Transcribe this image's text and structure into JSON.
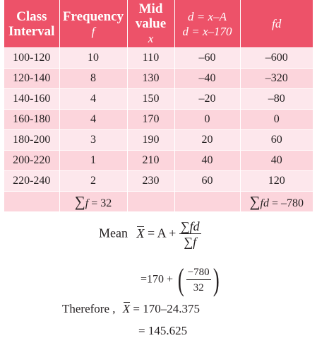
{
  "table": {
    "headers": [
      {
        "line1": "Class",
        "line2": "Interval",
        "line3": ""
      },
      {
        "line1": "Frequency",
        "line2": "f",
        "line3": ""
      },
      {
        "line1": "Mid",
        "line2": "value",
        "line3": "x"
      },
      {
        "line1": "d = x–A",
        "line2": "d = x–170",
        "line3": ""
      },
      {
        "line1": "fd",
        "line2": "",
        "line3": ""
      }
    ],
    "rows": [
      {
        "interval": "100-120",
        "f": "10",
        "x": "110",
        "d": "–60",
        "fd": "–600"
      },
      {
        "interval": "120-140",
        "f": "8",
        "x": "130",
        "d": "–40",
        "fd": "–320"
      },
      {
        "interval": "140-160",
        "f": "4",
        "x": "150",
        "d": "–20",
        "fd": "–80"
      },
      {
        "interval": "160-180",
        "f": "4",
        "x": "170",
        "d": "0",
        "fd": "0"
      },
      {
        "interval": "180-200",
        "f": "3",
        "x": "190",
        "d": "20",
        "fd": "60"
      },
      {
        "interval": "200-220",
        "f": "1",
        "x": "210",
        "d": "40",
        "fd": "40"
      },
      {
        "interval": "220-240",
        "f": "2",
        "x": "230",
        "d": "60",
        "fd": "120"
      }
    ],
    "sum_f": {
      "sigma": "∑",
      "var": "f",
      "rest": " = 32"
    },
    "sum_fd": {
      "sigma": "∑",
      "var": "fd",
      "rest": " = –780"
    }
  },
  "formula": {
    "mean_label": "Mean",
    "xbar": "X",
    "eq1_mid": "= A +",
    "frac1_num": "∑fd",
    "frac1_den": "∑f",
    "line2_prefix": "=170 +",
    "frac2_num": "−780",
    "frac2_den": "32",
    "therefore_label": "Therefore ,",
    "line3_rest": "= 170–24.375",
    "line4": "= 145.625"
  }
}
